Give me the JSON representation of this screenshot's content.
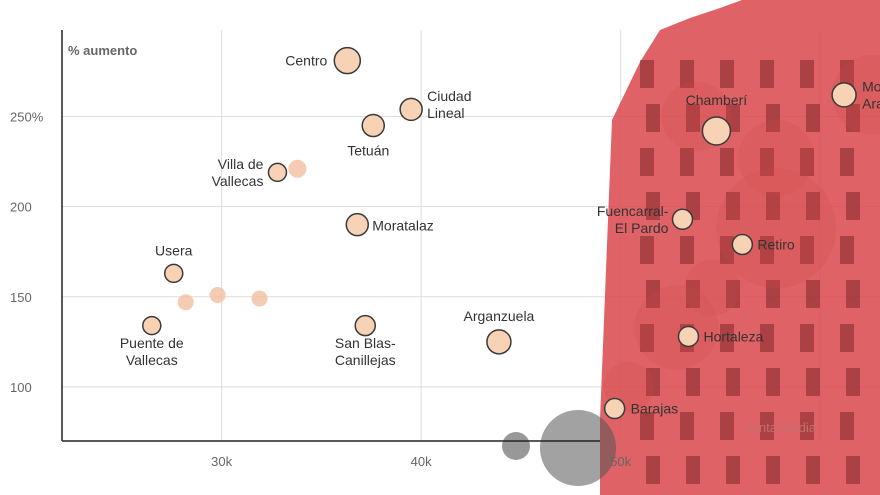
{
  "chart_data": {
    "type": "scatter",
    "ylabel": "% aumento",
    "xlabel": "renta media",
    "x_ticks": [
      "30k",
      "40k",
      "50k"
    ],
    "y_ticks": [
      "250%",
      "200",
      "150",
      "100"
    ],
    "xlim": [
      22000,
      63000
    ],
    "ylim": [
      70,
      298
    ],
    "grid": true,
    "colors": {
      "point_fill": "#f7d2b5",
      "point_stroke": "#3a3a3a",
      "faded_point": "#f4bea0",
      "overlay": "#d3464a"
    },
    "points": [
      {
        "label": [
          "Centro"
        ],
        "x": 36300,
        "y": 281,
        "r": 13,
        "anchor": "end",
        "dx": -20,
        "dy": 5
      },
      {
        "label": [
          "Ciudad",
          "Lineal"
        ],
        "x": 39500,
        "y": 254,
        "r": 11,
        "anchor": "start",
        "dx": 16,
        "dy": 0
      },
      {
        "label": [
          "Tetuán"
        ],
        "x": 37600,
        "y": 245,
        "r": 11,
        "anchor": "start",
        "dx": -26,
        "dy": 30
      },
      {
        "label": [
          "Villa de",
          "Vallecas"
        ],
        "x": 32800,
        "y": 219,
        "r": 9,
        "anchor": "end",
        "dx": -14,
        "dy": 5
      },
      {
        "label": [
          "Moratalaz"
        ],
        "x": 36800,
        "y": 190,
        "r": 11,
        "anchor": "start",
        "dx": 15,
        "dy": 6
      },
      {
        "label": [
          "Usera"
        ],
        "x": 27600,
        "y": 163,
        "r": 9,
        "anchor": "middle",
        "dx": 0,
        "dy": -18
      },
      {
        "label": [
          "Puente de",
          "Vallecas"
        ],
        "x": 26500,
        "y": 134,
        "r": 9,
        "anchor": "middle",
        "dx": 0,
        "dy": 31
      },
      {
        "label": [
          "San Blas-",
          "Canillejas"
        ],
        "x": 37200,
        "y": 134,
        "r": 10,
        "anchor": "middle",
        "dx": 0,
        "dy": 31
      },
      {
        "label": [
          "Arganzuela"
        ],
        "x": 43900,
        "y": 125,
        "r": 12,
        "anchor": "middle",
        "dx": 0,
        "dy": -21
      },
      {
        "label": [
          "Barajas"
        ],
        "x": 49700,
        "y": 88,
        "r": 10,
        "anchor": "start",
        "dx": 16,
        "dy": 5
      },
      {
        "label": [
          "Chamberí"
        ],
        "x": 54800,
        "y": 242,
        "r": 14,
        "anchor": "middle",
        "dx": 0,
        "dy": -26
      },
      {
        "label": [
          "Fuencarral-",
          "El Pardo"
        ],
        "x": 53100,
        "y": 193,
        "r": 10,
        "anchor": "end",
        "dx": -14,
        "dy": 5
      },
      {
        "label": [
          "Retiro"
        ],
        "x": 56100,
        "y": 179,
        "r": 10,
        "anchor": "start",
        "dx": 15,
        "dy": 5
      },
      {
        "label": [
          "Hortaleza"
        ],
        "x": 53400,
        "y": 128,
        "r": 10,
        "anchor": "start",
        "dx": 15,
        "dy": 5
      },
      {
        "label": [
          "Moncloa-",
          "Aravaca"
        ],
        "x": 61200,
        "y": 262,
        "r": 12,
        "anchor": "start",
        "dx": 18,
        "dy": 5
      }
    ],
    "faded_points": [
      {
        "x": 33800,
        "y": 221,
        "r": 9
      },
      {
        "x": 28200,
        "y": 147,
        "r": 8
      },
      {
        "x": 29800,
        "y": 151,
        "r": 8
      },
      {
        "x": 31900,
        "y": 149,
        "r": 8
      }
    ],
    "faded_circles": [
      {
        "x": 53800,
        "y": 250,
        "r": 35
      },
      {
        "x": 57800,
        "y": 227,
        "r": 38
      },
      {
        "x": 57800,
        "y": 188,
        "r": 60
      },
      {
        "x": 54600,
        "y": 155,
        "r": 28
      },
      {
        "x": 52800,
        "y": 133,
        "r": 42
      },
      {
        "x": 50400,
        "y": 100,
        "r": 25
      },
      {
        "x": 62600,
        "y": 262,
        "r": 40
      }
    ]
  }
}
